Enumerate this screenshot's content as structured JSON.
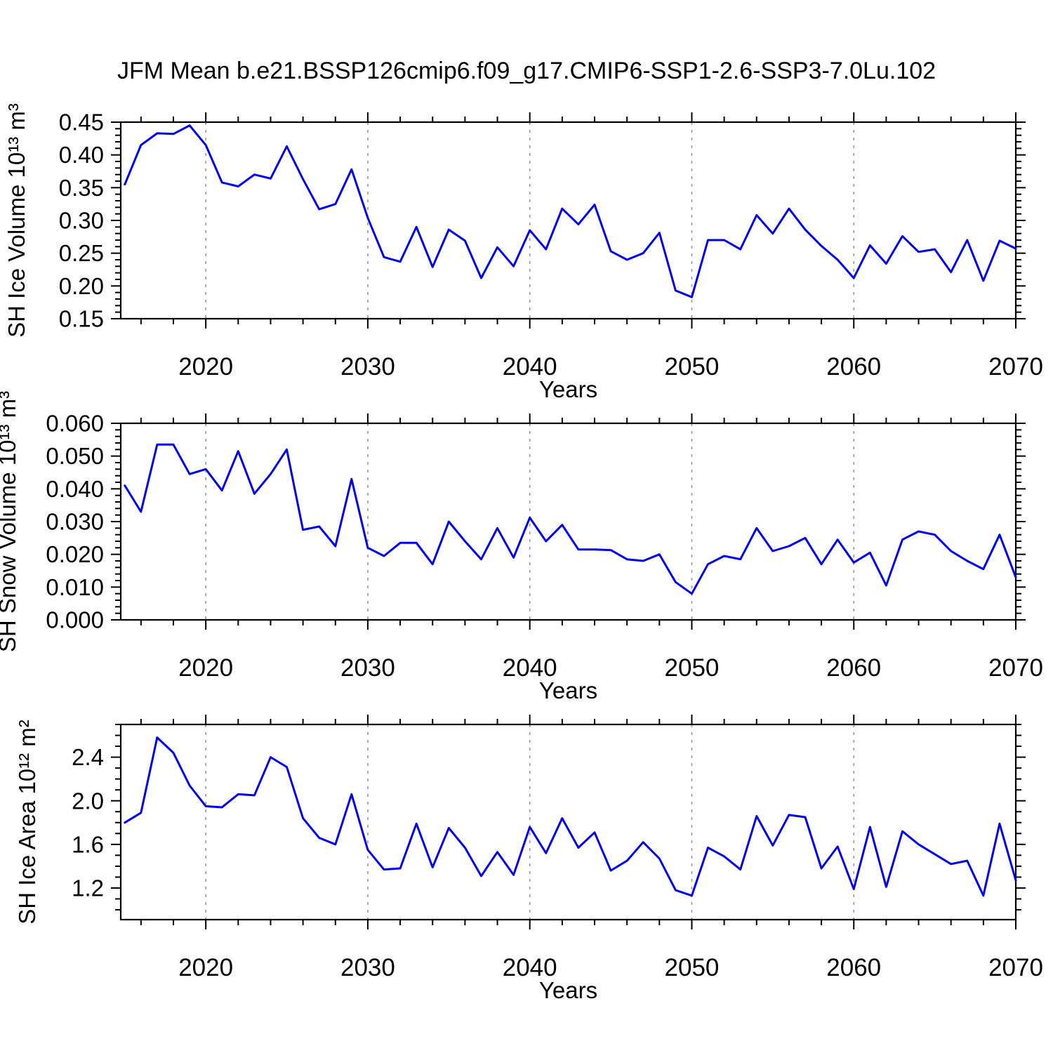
{
  "title": "JFM Mean b.e21.BSSP126cmip6.f09_g17.CMIP6-SSP1-2.6-SSP3-7.0Lu.102",
  "colors": {
    "line": "#0000EE",
    "axis": "#000000",
    "grid": "#999999",
    "background": "#FFFFFF"
  },
  "chart_data": {
    "type": "line",
    "title": "JFM Mean b.e21.BSSP126cmip6.f09_g17.CMIP6-SSP1-2.6-SSP3-7.0Lu.102",
    "x_label": "Years",
    "x_range": [
      2014.75,
      2070
    ],
    "x_major_ticks": [
      2020,
      2030,
      2040,
      2050,
      2060,
      2070
    ],
    "x_tick_labels": [
      "2020",
      "2030",
      "2040",
      "2050",
      "2060",
      "2070"
    ],
    "x_minor_step": 2,
    "grid_years": [
      2020,
      2030,
      2040,
      2050,
      2060
    ],
    "grid_on": true,
    "legend": null,
    "x": [
      2015,
      2016,
      2017,
      2018,
      2019,
      2020,
      2021,
      2022,
      2023,
      2024,
      2025,
      2026,
      2027,
      2028,
      2029,
      2030,
      2031,
      2032,
      2033,
      2034,
      2035,
      2036,
      2037,
      2038,
      2039,
      2040,
      2041,
      2042,
      2043,
      2044,
      2045,
      2046,
      2047,
      2048,
      2049,
      2050,
      2051,
      2052,
      2053,
      2054,
      2055,
      2056,
      2057,
      2058,
      2059,
      2060,
      2061,
      2062,
      2063,
      2064,
      2065,
      2066,
      2067,
      2068,
      2069,
      2070
    ],
    "panels": [
      {
        "name": "sh-ice-volume",
        "y_label": "SH Ice Volume 10¹³ m³",
        "y_range": [
          0.15,
          0.45
        ],
        "y_major_ticks": [
          0.15,
          0.2,
          0.25,
          0.3,
          0.35,
          0.4,
          0.45
        ],
        "y_tick_labels": [
          "0.15",
          "0.20",
          "0.25",
          "0.30",
          "0.35",
          "0.40",
          "0.45"
        ],
        "y_minor_step": 0.01,
        "values": [
          0.355,
          0.415,
          0.433,
          0.432,
          0.445,
          0.415,
          0.358,
          0.352,
          0.37,
          0.364,
          0.413,
          0.363,
          0.317,
          0.325,
          0.378,
          0.304,
          0.244,
          0.237,
          0.29,
          0.229,
          0.286,
          0.269,
          0.212,
          0.259,
          0.23,
          0.285,
          0.256,
          0.318,
          0.294,
          0.324,
          0.253,
          0.24,
          0.25,
          0.281,
          0.193,
          0.183,
          0.27,
          0.27,
          0.256,
          0.308,
          0.28,
          0.318,
          0.286,
          0.261,
          0.24,
          0.212,
          0.262,
          0.234,
          0.276,
          0.252,
          0.256,
          0.221,
          0.27,
          0.208,
          0.269,
          0.257
        ]
      },
      {
        "name": "sh-snow-volume",
        "y_label": "SH Snow Volume 10¹³ m³",
        "y_range": [
          0.0,
          0.06
        ],
        "y_major_ticks": [
          0.0,
          0.01,
          0.02,
          0.03,
          0.04,
          0.05,
          0.06
        ],
        "y_tick_labels": [
          "0.000",
          "0.010",
          "0.020",
          "0.030",
          "0.040",
          "0.050",
          "0.060"
        ],
        "y_minor_step": 0.002,
        "values": [
          0.041,
          0.033,
          0.0535,
          0.0535,
          0.0445,
          0.046,
          0.0395,
          0.0515,
          0.0385,
          0.0445,
          0.052,
          0.0275,
          0.0285,
          0.0225,
          0.043,
          0.022,
          0.0195,
          0.0235,
          0.0235,
          0.017,
          0.03,
          0.024,
          0.0185,
          0.028,
          0.019,
          0.0312,
          0.024,
          0.029,
          0.0215,
          0.0215,
          0.0213,
          0.0185,
          0.018,
          0.02,
          0.0115,
          0.008,
          0.017,
          0.0195,
          0.0185,
          0.028,
          0.021,
          0.0225,
          0.025,
          0.017,
          0.0245,
          0.0175,
          0.0205,
          0.0105,
          0.0245,
          0.027,
          0.026,
          0.021,
          0.018,
          0.0155,
          0.026,
          0.013
        ]
      },
      {
        "name": "sh-ice-area",
        "y_label": "SH Ice Area 10¹² m²",
        "y_range": [
          0.91,
          2.7
        ],
        "y_major_ticks": [
          1.2,
          1.6,
          2.0,
          2.4
        ],
        "y_tick_labels": [
          "1.2",
          "1.6",
          "2.0",
          "2.4"
        ],
        "y_minor_step": 0.1,
        "values": [
          1.8,
          1.89,
          2.58,
          2.44,
          2.14,
          1.95,
          1.94,
          2.06,
          2.05,
          2.4,
          2.31,
          1.84,
          1.66,
          1.6,
          2.06,
          1.55,
          1.37,
          1.38,
          1.79,
          1.39,
          1.75,
          1.57,
          1.31,
          1.53,
          1.32,
          1.76,
          1.52,
          1.84,
          1.57,
          1.71,
          1.36,
          1.45,
          1.62,
          1.47,
          1.18,
          1.13,
          1.57,
          1.49,
          1.37,
          1.86,
          1.59,
          1.87,
          1.85,
          1.38,
          1.58,
          1.19,
          1.76,
          1.21,
          1.72,
          1.6,
          1.51,
          1.42,
          1.45,
          1.13,
          1.79,
          1.27
        ]
      }
    ]
  }
}
